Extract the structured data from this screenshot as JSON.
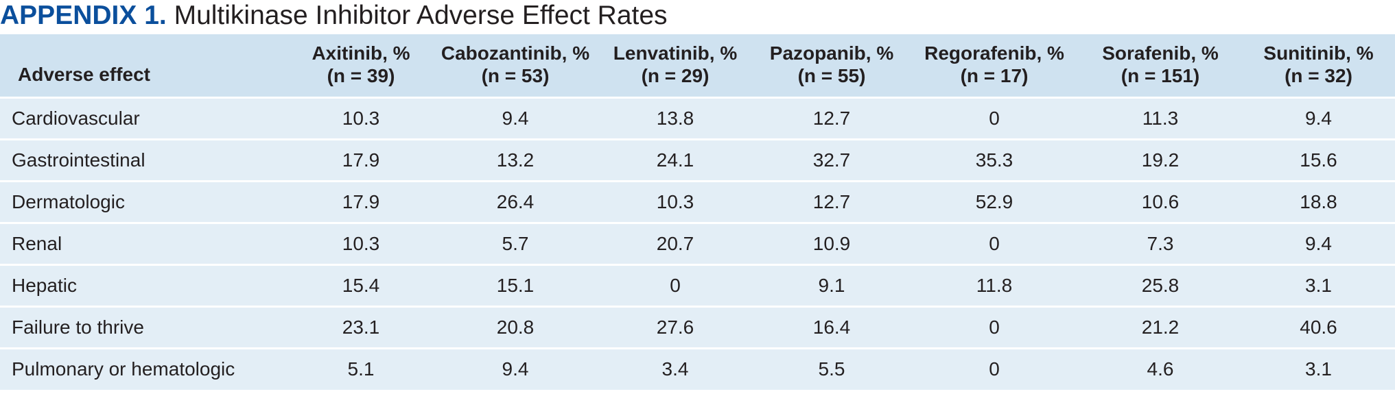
{
  "title": {
    "label": "APPENDIX 1.",
    "text": "Multikinase Inhibitor Adverse Effect Rates"
  },
  "table": {
    "columns": [
      {
        "name": "Adverse effect",
        "subtitle": ""
      },
      {
        "name": "Axitinib, %",
        "subtitle": "(n = 39)"
      },
      {
        "name": "Cabozantinib, %",
        "subtitle": "(n = 53)"
      },
      {
        "name": "Lenvatinib, %",
        "subtitle": "(n = 29)"
      },
      {
        "name": "Pazopanib, %",
        "subtitle": "(n = 55)"
      },
      {
        "name": "Regorafenib, %",
        "subtitle": "(n = 17)"
      },
      {
        "name": "Sorafenib, %",
        "subtitle": "(n = 151)"
      },
      {
        "name": "Sunitinib, %",
        "subtitle": "(n = 32)"
      }
    ],
    "rows": [
      [
        "Cardiovascular",
        "10.3",
        "9.4",
        "13.8",
        "12.7",
        "0",
        "11.3",
        "9.4"
      ],
      [
        "Gastrointestinal",
        "17.9",
        "13.2",
        "24.1",
        "32.7",
        "35.3",
        "19.2",
        "15.6"
      ],
      [
        "Dermatologic",
        "17.9",
        "26.4",
        "10.3",
        "12.7",
        "52.9",
        "10.6",
        "18.8"
      ],
      [
        "Renal",
        "10.3",
        "5.7",
        "20.7",
        "10.9",
        "0",
        "7.3",
        "9.4"
      ],
      [
        "Hepatic",
        "15.4",
        "15.1",
        "0",
        "9.1",
        "11.8",
        "25.8",
        "3.1"
      ],
      [
        "Failure to thrive",
        "23.1",
        "20.8",
        "27.6",
        "16.4",
        "0",
        "21.2",
        "40.6"
      ],
      [
        "Pulmonary or hematologic",
        "5.1",
        "9.4",
        "3.4",
        "5.5",
        "0",
        "4.6",
        "3.1"
      ]
    ]
  },
  "colors": {
    "title_accent": "#0b4f9c",
    "header_background": "#cfe2f0",
    "row_background": "#e3eef6",
    "divider": "#ffffff"
  }
}
